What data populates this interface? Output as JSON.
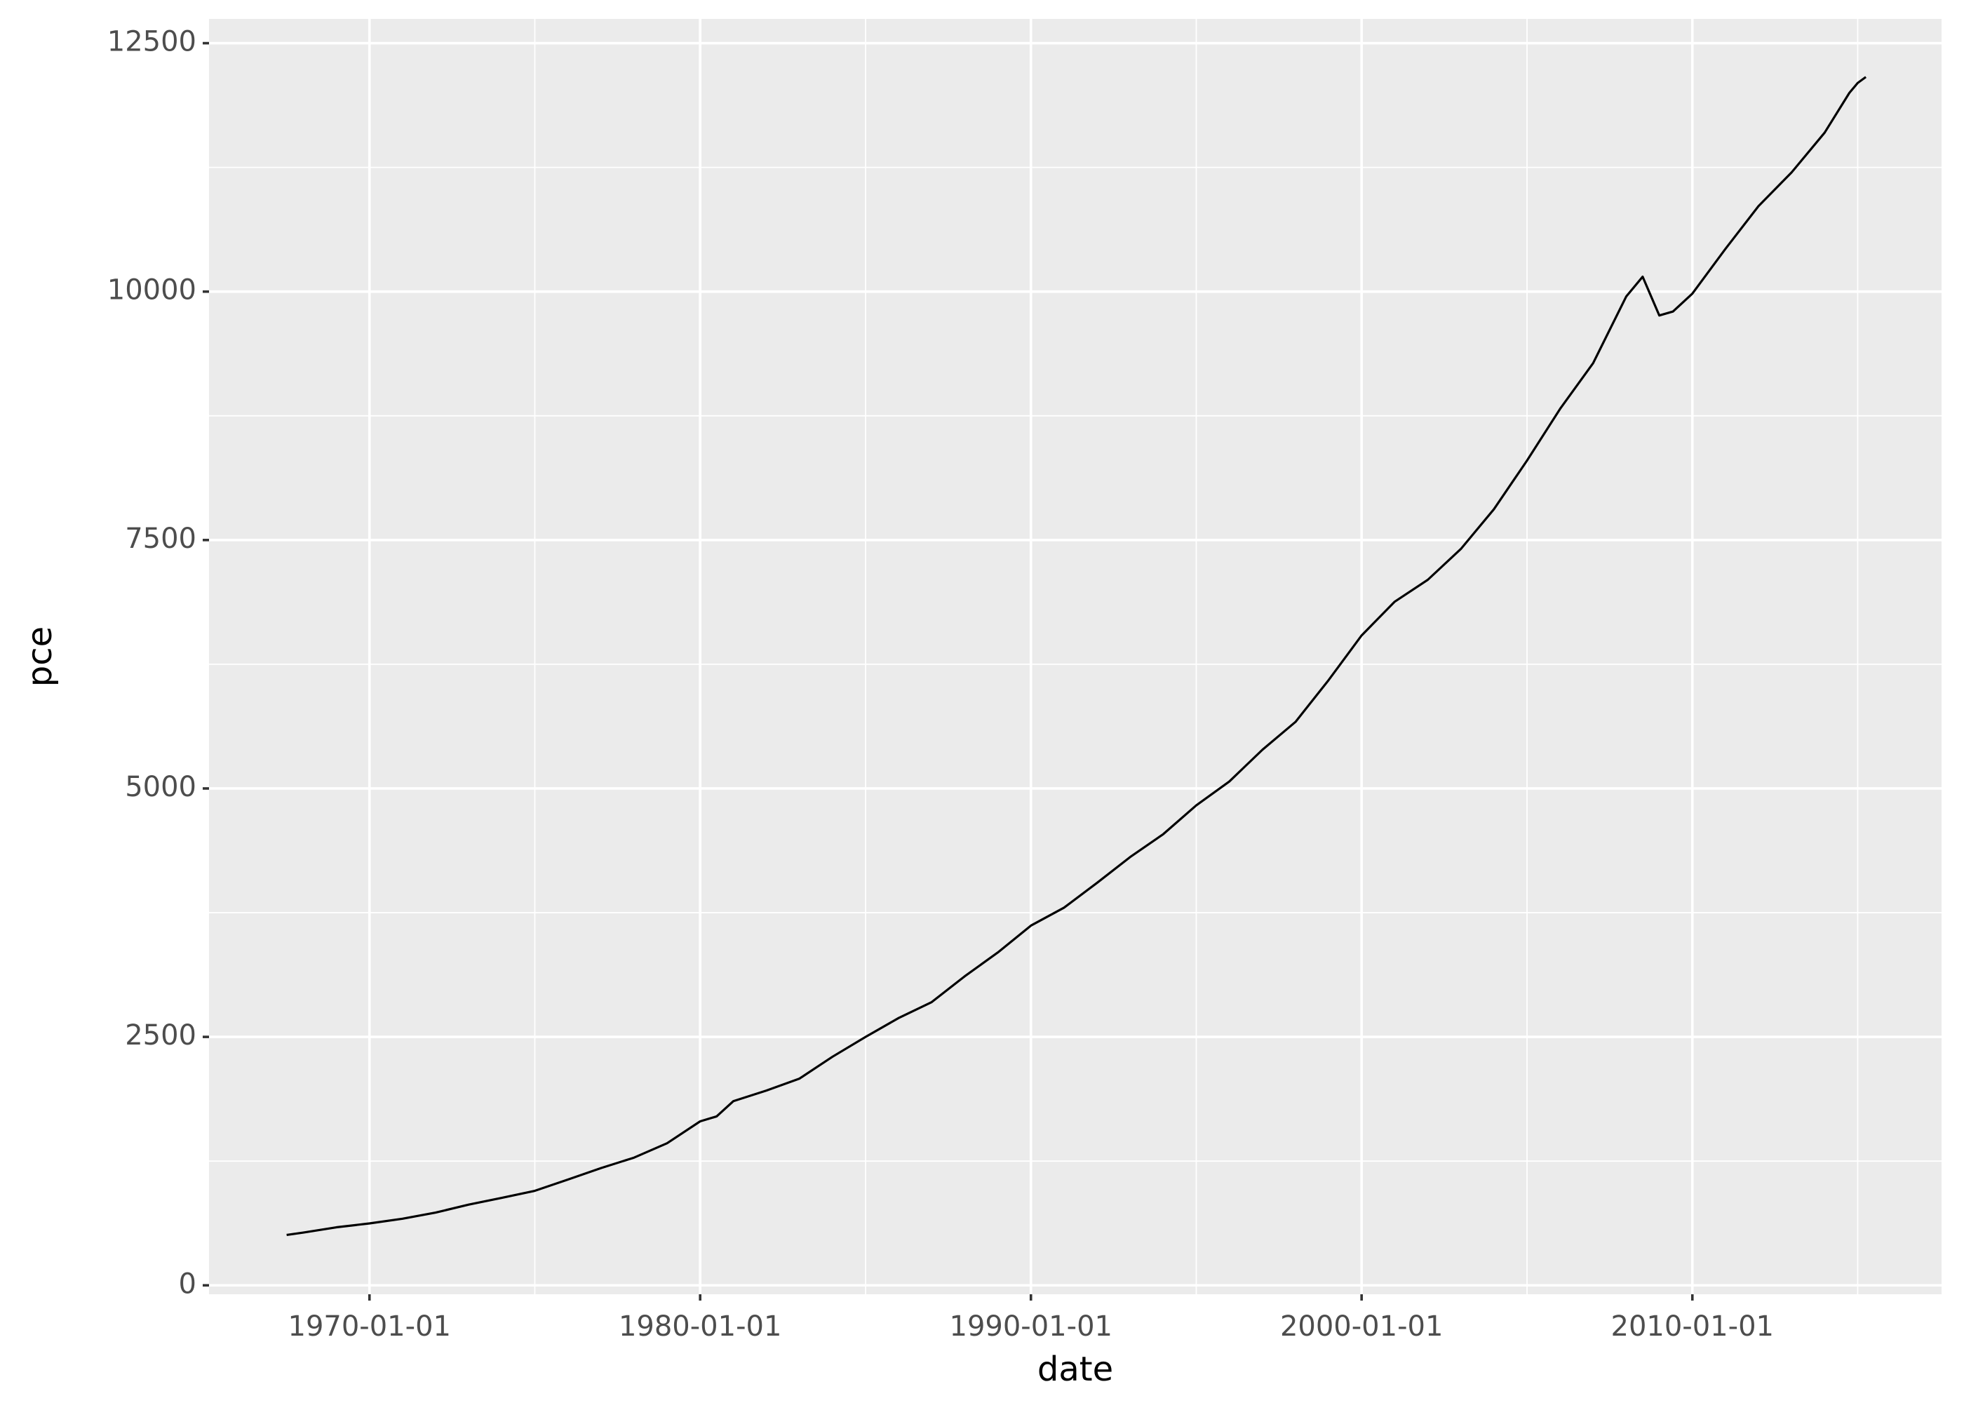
{
  "chart_data": {
    "type": "line",
    "x_label": "date",
    "y_label": "pce",
    "x": [
      "1967-07-01",
      "1968-01-01",
      "1969-01-01",
      "1970-01-01",
      "1971-01-01",
      "1972-01-01",
      "1973-01-01",
      "1974-01-01",
      "1975-01-01",
      "1976-01-01",
      "1977-01-01",
      "1978-01-01",
      "1979-01-01",
      "1980-01-01",
      "1980-07-01",
      "1981-01-01",
      "1982-01-01",
      "1983-01-01",
      "1984-01-01",
      "1985-01-01",
      "1986-01-01",
      "1987-01-01",
      "1988-01-01",
      "1989-01-01",
      "1990-01-01",
      "1991-01-01",
      "1992-01-01",
      "1993-01-01",
      "1994-01-01",
      "1995-01-01",
      "1996-01-01",
      "1997-01-01",
      "1998-01-01",
      "1999-01-01",
      "2000-01-01",
      "2001-01-01",
      "2002-01-01",
      "2003-01-01",
      "2004-01-01",
      "2005-01-01",
      "2006-01-01",
      "2007-01-01",
      "2008-01-01",
      "2008-07-01",
      "2009-01-01",
      "2009-06-01",
      "2010-01-01",
      "2011-01-01",
      "2012-01-01",
      "2013-01-01",
      "2014-01-01",
      "2014-10-01",
      "2015-01-01",
      "2015-04-01"
    ],
    "series": [
      {
        "name": "pce",
        "color": "#000000",
        "values": [
          507,
          531,
          584,
          623,
          670,
          732,
          812,
          880,
          951,
          1064,
          1180,
          1285,
          1430,
          1650,
          1700,
          1853,
          1960,
          2080,
          2300,
          2500,
          2690,
          2850,
          3110,
          3350,
          3620,
          3800,
          4050,
          4310,
          4540,
          4830,
          5070,
          5390,
          5670,
          6090,
          6540,
          6880,
          7100,
          7410,
          7810,
          8300,
          8820,
          9280,
          9950,
          10150,
          9760,
          9800,
          9980,
          10430,
          10860,
          11200,
          11600,
          12000,
          12100,
          12160
        ]
      }
    ],
    "xlim": [
      "1965-02-24",
      "2017-07-15"
    ],
    "xticks": [
      "1970-01-01",
      "1980-01-01",
      "1990-01-01",
      "2000-01-01",
      "2010-01-01"
    ],
    "xminorticks": [
      "1975-01-01",
      "1985-01-01",
      "1995-01-01",
      "2005-01-01",
      "2015-01-01"
    ],
    "ylim": [
      -90,
      12744
    ],
    "yticks": [
      0,
      2500,
      5000,
      7500,
      10000,
      12500
    ],
    "yminorticks": [
      1250,
      3750,
      6250,
      8750,
      11250
    ],
    "grid": true
  }
}
